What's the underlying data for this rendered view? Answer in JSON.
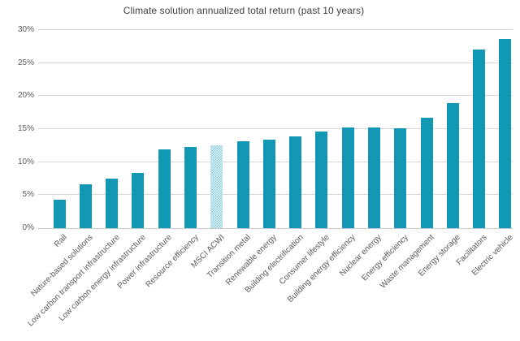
{
  "colors": {
    "bar": "#1297b5",
    "benchmark_light": "#e8f5fa",
    "benchmark_dark": "#8ccfe2",
    "gridline": "#d9d9d9",
    "axis_line": "#c9c9c9",
    "title_text": "#404040",
    "tick_text": "#595959"
  },
  "chart_data": {
    "type": "bar",
    "title": "Climate solution annualized total return (past 10 years)",
    "xlabel": "",
    "ylabel": "",
    "categories": [
      "Rail",
      "Nature-based solutions",
      "Low carbon transport infrastructure",
      "Low carbon energy infrastructure",
      "Power infrastructure",
      "Resource efficiency",
      "MSCI ACWI",
      "Transition metal",
      "Renewable energy",
      "Building electrification",
      "Consumer lifestyle",
      "Building energy efficiency",
      "Nuclear energy",
      "Energy efficiency",
      "Waste management",
      "Energy storage",
      "Facilitators",
      "Electric vehicle"
    ],
    "values": [
      4.3,
      6.6,
      7.5,
      8.4,
      11.9,
      12.3,
      12.5,
      13.2,
      13.4,
      13.9,
      14.6,
      15.2,
      15.2,
      15.1,
      16.7,
      18.9,
      27.1,
      28.6
    ],
    "value_unit": "%",
    "benchmark_category": "MSCI ACWI",
    "benchmark_index": 6,
    "benchmark_style": "light-checker-hatch",
    "ylim": [
      0,
      30
    ],
    "ytick_step": 5,
    "ytick_labels": [
      "0%",
      "5%",
      "10%",
      "15%",
      "20%",
      "25%",
      "30%"
    ],
    "grid": true,
    "legend_position": "none",
    "xtick_rotation_deg": 45
  }
}
